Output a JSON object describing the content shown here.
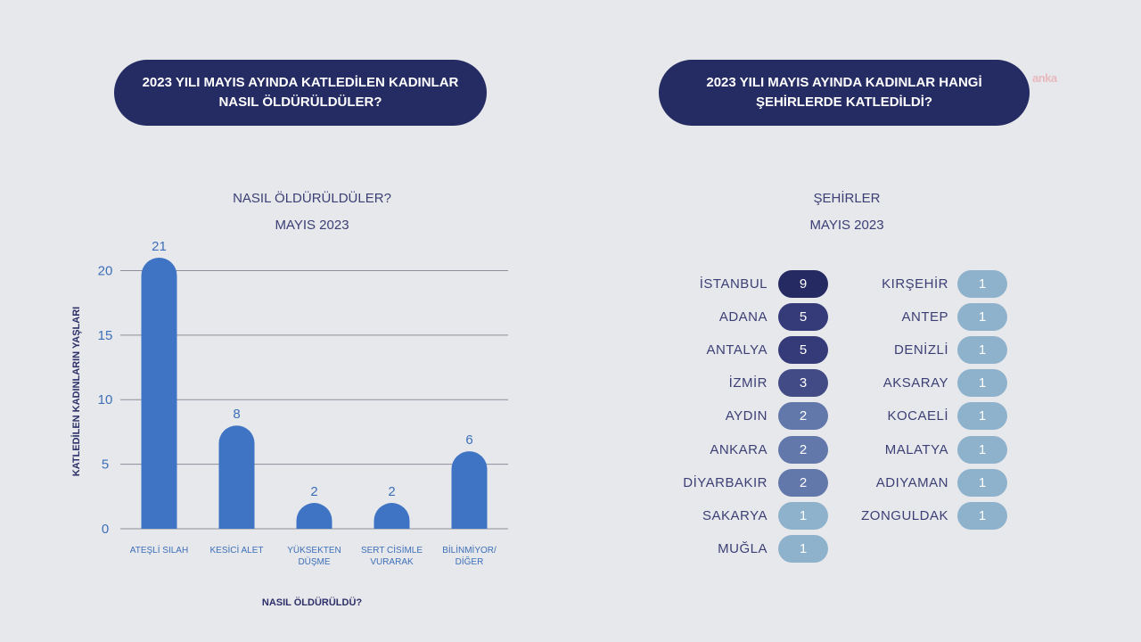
{
  "headers": {
    "left": "2023 YILI MAYIS AYINDA KATLEDİLEN KADINLAR NASIL ÖLDÜRÜLDÜLER?",
    "right": "2023 YILI MAYIS AYINDA KADINLAR HANGİ ŞEHİRLERDE KATLEDİLDİ?"
  },
  "watermark": "anka",
  "chart_data": {
    "type": "bar",
    "title": "NASIL ÖLDÜRÜLDÜLER?",
    "subtitle": "MAYIS 2023",
    "xlabel": "NASIL ÖLDÜRÜLDÜ?",
    "ylabel": "KATLEDİLEN KADINLARIN YAŞLARI",
    "categories": [
      "ATEŞLİ SILAH",
      "KESİCİ ALET",
      "YÜKSEKTEN DÜŞME",
      "SERT CİSİMLE VURARAK",
      "BİLİNMİYOR/ DİĞER"
    ],
    "category_lines": [
      [
        "ATEŞLİ SILAH"
      ],
      [
        "KESİCİ ALET"
      ],
      [
        "YÜKSEKTEN",
        "DÜŞME"
      ],
      [
        "SERT CİSİMLE",
        "VURARAK"
      ],
      [
        "BİLİNMİYOR/",
        "DİĞER"
      ]
    ],
    "values": [
      21,
      8,
      2,
      2,
      6
    ],
    "yticks": [
      0,
      5,
      10,
      15,
      20
    ],
    "ylim": [
      0,
      21
    ],
    "grid": true,
    "bar_color": "#3f74c4"
  },
  "cities": {
    "title": "ŞEHİRLER",
    "subtitle": "MAYIS 2023",
    "left_column": [
      {
        "name": "İSTANBUL",
        "count": 9,
        "color": "#262a63"
      },
      {
        "name": "ADANA",
        "count": 5,
        "color": "#353a78"
      },
      {
        "name": "ANTALYA",
        "count": 5,
        "color": "#353a78"
      },
      {
        "name": "İZMİR",
        "count": 3,
        "color": "#424b86"
      },
      {
        "name": "AYDIN",
        "count": 2,
        "color": "#6277aa"
      },
      {
        "name": "ANKARA",
        "count": 2,
        "color": "#6277aa"
      },
      {
        "name": "DİYARBAKIR",
        "count": 2,
        "color": "#6277aa"
      },
      {
        "name": "SAKARYA",
        "count": 1,
        "color": "#8fb2cc"
      },
      {
        "name": "MUĞLA",
        "count": 1,
        "color": "#8fb2cc"
      }
    ],
    "right_column": [
      {
        "name": "KIRŞEHİR",
        "count": 1,
        "color": "#8fb2cc"
      },
      {
        "name": "ANTEP",
        "count": 1,
        "color": "#8fb2cc"
      },
      {
        "name": "DENİZLİ",
        "count": 1,
        "color": "#8fb2cc"
      },
      {
        "name": "AKSARAY",
        "count": 1,
        "color": "#8fb2cc"
      },
      {
        "name": "KOCAELİ",
        "count": 1,
        "color": "#8fb2cc"
      },
      {
        "name": "MALATYA",
        "count": 1,
        "color": "#8fb2cc"
      },
      {
        "name": "ADIYAMAN",
        "count": 1,
        "color": "#8fb2cc"
      },
      {
        "name": "ZONGULDAK",
        "count": 1,
        "color": "#8fb2cc"
      }
    ]
  }
}
